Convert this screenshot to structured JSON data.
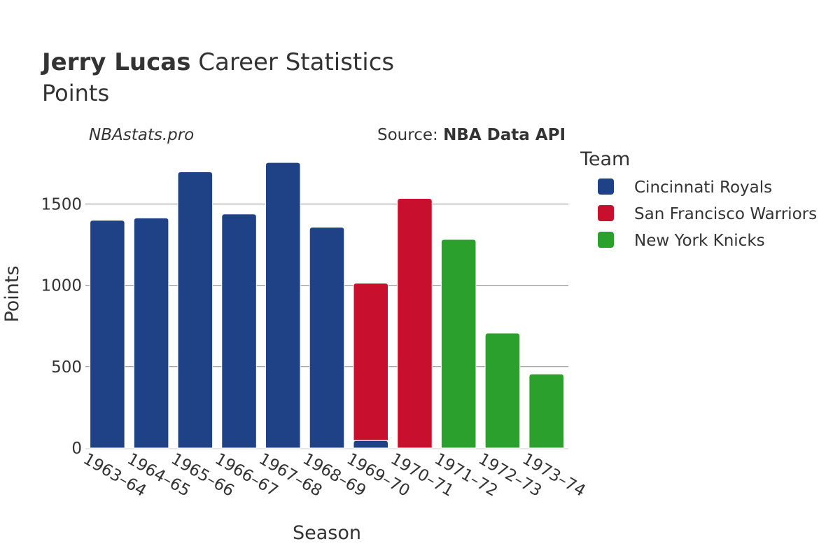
{
  "header": {
    "title_bold": "Jerry Lucas",
    "title_rest": " Career Statistics",
    "subtitle": "Points",
    "brand": "NBAstats.pro",
    "source_prefix": "Source: ",
    "source_name": "NBA Data API"
  },
  "chart_data": {
    "type": "bar",
    "stacked": true,
    "xlabel": "Season",
    "ylabel": "Points",
    "ylim": [
      0,
      1850
    ],
    "yticks": [
      0,
      500,
      1000,
      1500
    ],
    "grid": true,
    "legend_title": "Team",
    "legend_position": "right",
    "categories": [
      "1963–64",
      "1964–65",
      "1965–66",
      "1966–67",
      "1967–68",
      "1968–69",
      "1969–70",
      "1970–71",
      "1971–72",
      "1972–73",
      "1973–74"
    ],
    "series": [
      {
        "name": "Cincinnati Royals",
        "color": "#1f4287",
        "values": [
          1400,
          1414,
          1697,
          1438,
          1755,
          1357,
          46,
          0,
          0,
          0,
          0
        ]
      },
      {
        "name": "San Francisco Warriors",
        "color": "#c8102e",
        "values": [
          0,
          0,
          0,
          0,
          0,
          0,
          967,
          1534,
          0,
          0,
          0
        ]
      },
      {
        "name": "New York Knicks",
        "color": "#2ca02c",
        "values": [
          0,
          0,
          0,
          0,
          0,
          0,
          0,
          0,
          1282,
          706,
          455
        ]
      }
    ]
  }
}
